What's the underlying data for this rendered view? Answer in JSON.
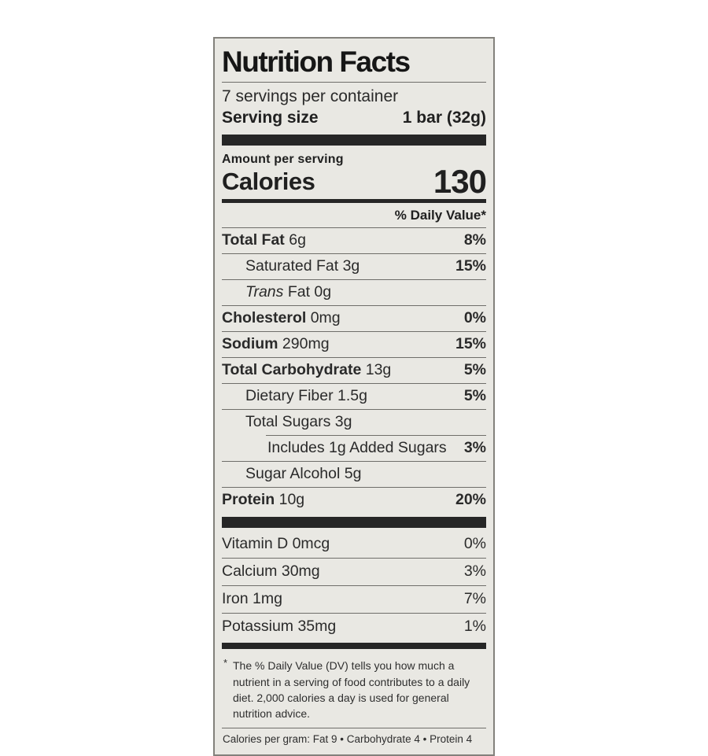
{
  "colors": {
    "label_background": "#e9e8e3",
    "label_border": "#83817c",
    "text": "#202020",
    "bars": "#262626",
    "page_background": "#ffffff"
  },
  "label": {
    "title": "Nutrition Facts",
    "servings_per_container": "7 servings per container",
    "serving_size_label": "Serving size",
    "serving_size_value": "1 bar (32g)",
    "amount_per_serving": "Amount per serving",
    "calories_label": "Calories",
    "calories_value": "130",
    "daily_value_header": "% Daily Value*",
    "nutrients": [
      {
        "bold": "Total Fat",
        "italic": "",
        "text": " 6g",
        "dv": "8%"
      },
      {
        "bold": "",
        "italic": "",
        "text": "Saturated Fat 3g",
        "dv": "15%"
      },
      {
        "bold": "",
        "italic": "Trans",
        "text": " Fat 0g",
        "dv": ""
      },
      {
        "bold": "Cholesterol",
        "italic": "",
        "text": " 0mg",
        "dv": "0%"
      },
      {
        "bold": "Sodium",
        "italic": "",
        "text": " 290mg",
        "dv": "15%"
      },
      {
        "bold": "Total Carbohydrate",
        "italic": "",
        "text": " 13g",
        "dv": "5%"
      },
      {
        "bold": "",
        "italic": "",
        "text": "Dietary Fiber 1.5g",
        "dv": "5%"
      },
      {
        "bold": "",
        "italic": "",
        "text": "Total Sugars 3g",
        "dv": ""
      },
      {
        "bold": "",
        "italic": "",
        "text": "Includes 1g Added Sugars",
        "dv": "3%"
      },
      {
        "bold": "",
        "italic": "",
        "text": "Sugar Alcohol 5g",
        "dv": ""
      },
      {
        "bold": "Protein",
        "italic": "",
        "text": " 10g",
        "dv": "20%"
      }
    ],
    "vitamins": [
      {
        "text": "Vitamin D 0mcg",
        "dv": "0%"
      },
      {
        "text": "Calcium 30mg",
        "dv": "3%"
      },
      {
        "text": "Iron 1mg",
        "dv": "7%"
      },
      {
        "text": "Potassium 35mg",
        "dv": "1%"
      }
    ],
    "footnote_marker": "*",
    "footnote": "The % Daily Value (DV) tells you how much a nutrient in a serving of food contributes to a daily diet. 2,000 calories a day is used for general nutrition advice.",
    "calories_per_gram": "Calories per gram: Fat 9 • Carbohydrate 4 • Protein 4"
  }
}
